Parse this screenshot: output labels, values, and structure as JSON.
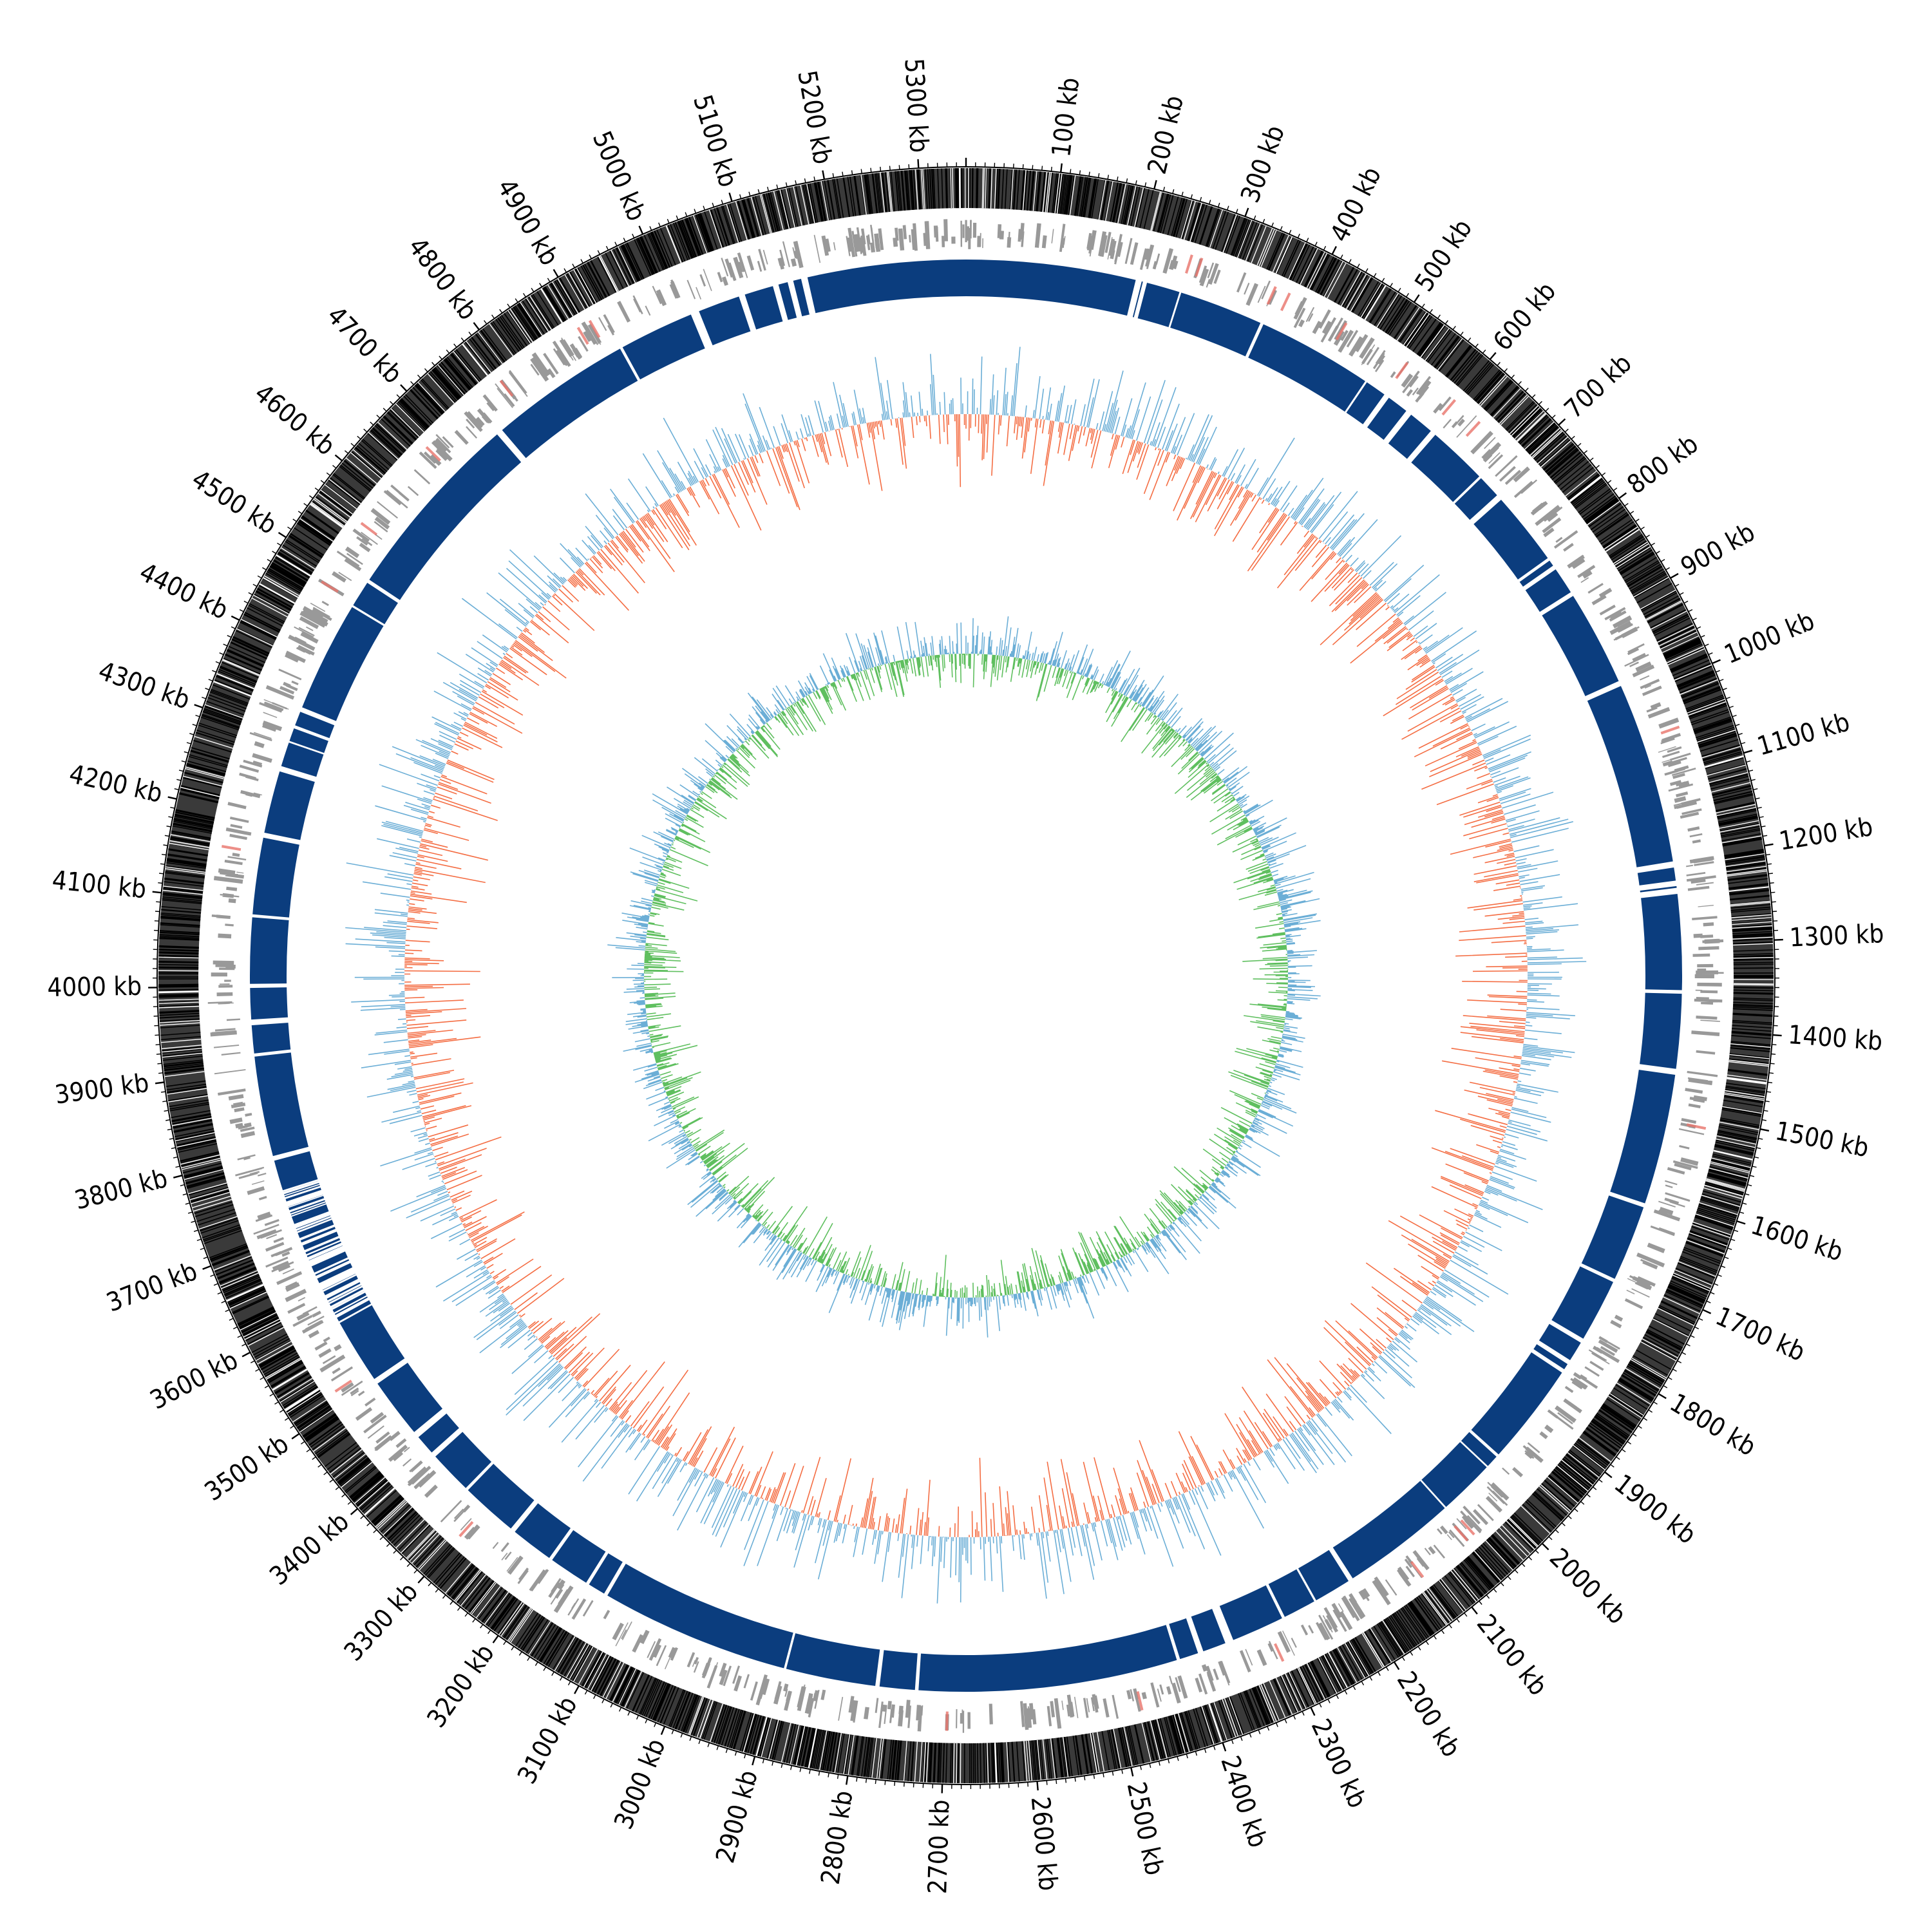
{
  "genome": {
    "length_kb": 5350,
    "scale_unit": "kb",
    "scale_labels": [
      "100 kb",
      "200 kb",
      "300 kb",
      "400 kb",
      "500 kb",
      "600 kb",
      "700 kb",
      "800 kb",
      "900 kb",
      "1000 kb",
      "1100 kb",
      "1200 kb",
      "1300 kb",
      "1400 kb",
      "1500 kb",
      "1600 kb",
      "1700 kb",
      "1800 kb",
      "1900 kb",
      "2000 kb",
      "2100 kb",
      "2200 kb",
      "2300 kb",
      "2400 kb",
      "2500 kb",
      "2600 kb",
      "2700 kb",
      "2800 kb",
      "2900 kb",
      "3000 kb",
      "3100 kb",
      "3200 kb",
      "3300 kb",
      "3400 kb",
      "3500 kb",
      "3600 kb",
      "3700 kb",
      "3800 kb",
      "3900 kb",
      "4000 kb",
      "4100 kb",
      "4200 kb",
      "4300 kb",
      "4400 kb",
      "4500 kb",
      "4600 kb",
      "4700 kb",
      "4800 kb",
      "4900 kb",
      "5000 kb",
      "5100 kb",
      "5200 kb",
      "5300 kb"
    ]
  },
  "tracks": {
    "forward_cds": {
      "color": "#000000"
    },
    "reverse_cds": {
      "color": "#999999",
      "accent": "#e8736a"
    },
    "annotation_ring": {
      "color": "#0b3d7e"
    },
    "gc_content": {
      "positive": "#6baed6",
      "negative": "#f46d43"
    },
    "gc_skew": {
      "positive": "#6baed6",
      "negative": "#5fbf5f"
    }
  }
}
